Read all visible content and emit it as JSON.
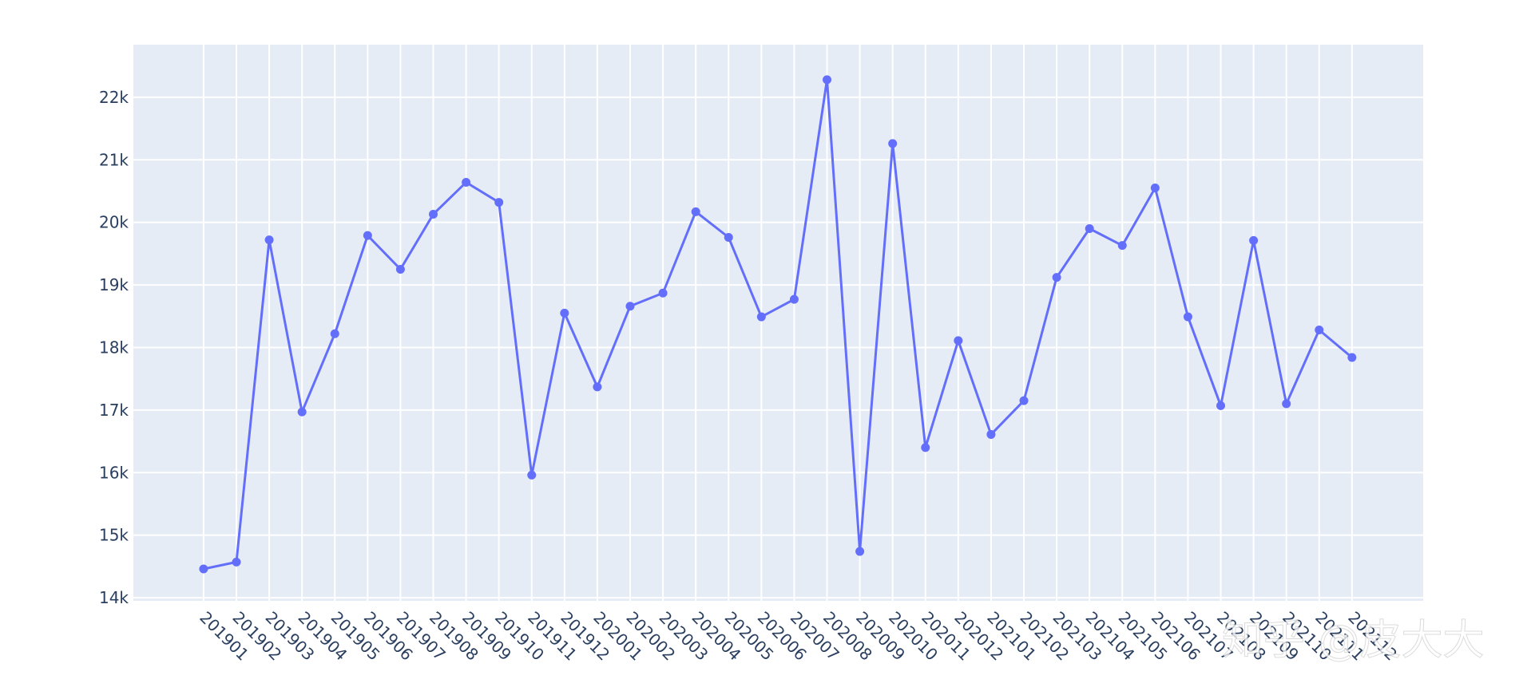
{
  "chart_data": {
    "type": "line",
    "categories": [
      "201901",
      "201902",
      "201903",
      "201904",
      "201905",
      "201906",
      "201907",
      "201908",
      "201909",
      "201910",
      "201911",
      "201912",
      "202001",
      "202002",
      "202003",
      "202004",
      "202005",
      "202006",
      "202007",
      "202008",
      "202009",
      "202010",
      "202011",
      "202012",
      "202101",
      "202102",
      "202103",
      "202104",
      "202105",
      "202106",
      "202107",
      "202108",
      "202109",
      "202110",
      "202111",
      "202112"
    ],
    "series": [
      {
        "color": "#636efa",
        "values": [
          14460,
          14570,
          19720,
          16970,
          18220,
          19790,
          19250,
          20130,
          20640,
          20320,
          15960,
          18550,
          17370,
          18660,
          18870,
          20170,
          19760,
          18490,
          18770,
          22280,
          14740,
          21260,
          16400,
          18110,
          16610,
          17150,
          19120,
          19900,
          19630,
          20550,
          18490,
          17070,
          19710,
          17100,
          18280,
          17840
        ]
      }
    ],
    "ylim": [
      13950,
      22840
    ],
    "yticks": [
      {
        "value": 14000,
        "label": "14k"
      },
      {
        "value": 15000,
        "label": "15k"
      },
      {
        "value": 16000,
        "label": "16k"
      },
      {
        "value": 17000,
        "label": "17k"
      },
      {
        "value": 18000,
        "label": "18k"
      },
      {
        "value": 19000,
        "label": "19k"
      },
      {
        "value": 20000,
        "label": "20k"
      },
      {
        "value": 21000,
        "label": "21k"
      },
      {
        "value": 22000,
        "label": "22k"
      }
    ],
    "grid": true,
    "watermark": "知乎 @皮大大"
  }
}
